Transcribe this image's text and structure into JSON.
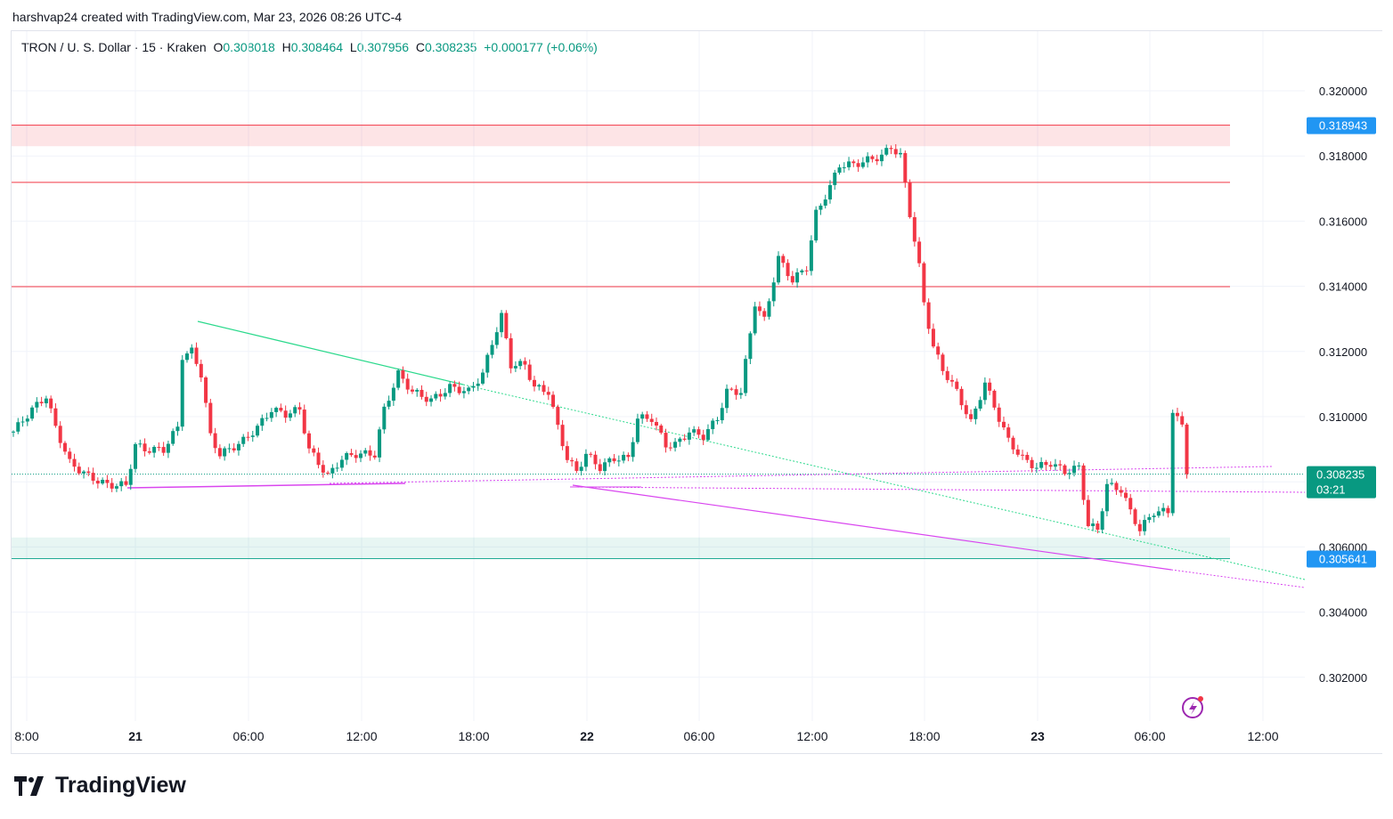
{
  "credit": "harshvap24 created with TradingView.com, Mar 23, 2026 08:26 UTC-4",
  "legend": {
    "symbol": "TRON / U. S. Dollar · 15 · Kraken",
    "o_label": "O",
    "o": "0.308018",
    "h_label": "H",
    "h": "0.308464",
    "l_label": "L",
    "l": "0.307956",
    "c_label": "C",
    "c": "0.308235",
    "change": "+0.000177 (+0.06%)"
  },
  "logo": "TradingView",
  "colors": {
    "up": "#089981",
    "down": "#f23645",
    "resistance": "#f23645",
    "support": "#22ab94",
    "trend_green": "#2bd98c",
    "trend_magenta": "#d946ef",
    "label_blue": "#2196f3"
  },
  "chart_data": {
    "type": "candlestick",
    "interval": "15",
    "ylim": [
      0.3005,
      0.3215
    ],
    "y_ticks": [
      "0.320000",
      "0.318000",
      "0.316000",
      "0.314000",
      "0.312000",
      "0.310000",
      "0.306000",
      "0.304000",
      "0.302000"
    ],
    "x_ticks": [
      "8:00",
      "21",
      "06:00",
      "12:00",
      "18:00",
      "22",
      "06:00",
      "12:00",
      "18:00",
      "23",
      "06:00",
      "12:00"
    ],
    "bar_count": 251,
    "price_path": [
      [
        0,
        0.30954
      ],
      [
        4,
        0.31022
      ],
      [
        7,
        0.31063
      ],
      [
        9,
        0.30967
      ],
      [
        12,
        0.30858
      ],
      [
        16,
        0.30817
      ],
      [
        20,
        0.3079
      ],
      [
        24,
        0.3079
      ],
      [
        26,
        0.30913
      ],
      [
        28,
        0.30899
      ],
      [
        32,
        0.30899
      ],
      [
        35,
        0.30967
      ],
      [
        36,
        0.31186
      ],
      [
        38,
        0.312
      ],
      [
        40,
        0.31131
      ],
      [
        42,
        0.3094
      ],
      [
        44,
        0.30885
      ],
      [
        46,
        0.30899
      ],
      [
        49,
        0.30926
      ],
      [
        52,
        0.30967
      ],
      [
        55,
        0.31022
      ],
      [
        58,
        0.31008
      ],
      [
        61,
        0.31022
      ],
      [
        63,
        0.30899
      ],
      [
        65,
        0.30858
      ],
      [
        67,
        0.30817
      ],
      [
        70,
        0.30872
      ],
      [
        73,
        0.30885
      ],
      [
        77,
        0.30885
      ],
      [
        79,
        0.31022
      ],
      [
        82,
        0.31131
      ],
      [
        85,
        0.31077
      ],
      [
        89,
        0.3105
      ],
      [
        93,
        0.3109
      ],
      [
        97,
        0.31077
      ],
      [
        100,
        0.31131
      ],
      [
        102,
        0.31227
      ],
      [
        104,
        0.31309
      ],
      [
        106,
        0.31159
      ],
      [
        109,
        0.31159
      ],
      [
        111,
        0.3109
      ],
      [
        114,
        0.31077
      ],
      [
        116,
        0.30967
      ],
      [
        118,
        0.30872
      ],
      [
        120,
        0.30831
      ],
      [
        122,
        0.30885
      ],
      [
        125,
        0.30844
      ],
      [
        128,
        0.30872
      ],
      [
        131,
        0.30872
      ],
      [
        133,
        0.30995
      ],
      [
        136,
        0.30995
      ],
      [
        139,
        0.30913
      ],
      [
        141,
        0.30913
      ],
      [
        144,
        0.30954
      ],
      [
        147,
        0.3094
      ],
      [
        150,
        0.30995
      ],
      [
        152,
        0.31077
      ],
      [
        155,
        0.31077
      ],
      [
        157,
        0.31254
      ],
      [
        158,
        0.3135
      ],
      [
        160,
        0.31295
      ],
      [
        163,
        0.31486
      ],
      [
        166,
        0.31418
      ],
      [
        169,
        0.31459
      ],
      [
        171,
        0.31623
      ],
      [
        174,
        0.31705
      ],
      [
        176,
        0.31773
      ],
      [
        179,
        0.31773
      ],
      [
        182,
        0.31787
      ],
      [
        185,
        0.318
      ],
      [
        187,
        0.31828
      ],
      [
        189,
        0.318
      ],
      [
        191,
        0.31623
      ],
      [
        193,
        0.31459
      ],
      [
        194,
        0.3135
      ],
      [
        196,
        0.31213
      ],
      [
        198,
        0.31145
      ],
      [
        201,
        0.31077
      ],
      [
        204,
        0.30981
      ],
      [
        207,
        0.31104
      ],
      [
        210,
        0.30995
      ],
      [
        212,
        0.30926
      ],
      [
        215,
        0.30872
      ],
      [
        218,
        0.30844
      ],
      [
        221,
        0.30858
      ],
      [
        224,
        0.30831
      ],
      [
        227,
        0.30844
      ],
      [
        229,
        0.30667
      ],
      [
        231,
        0.30653
      ],
      [
        233,
        0.3079
      ],
      [
        236,
        0.30776
      ],
      [
        238,
        0.30708
      ],
      [
        240,
        0.30653
      ],
      [
        243,
        0.30708
      ],
      [
        246,
        0.30708
      ],
      [
        247,
        0.31022
      ],
      [
        249,
        0.30967
      ],
      [
        250,
        0.308235
      ]
    ],
    "horizontal_levels": [
      {
        "price": 0.318943,
        "label": "0.318943",
        "kind": "resistance"
      },
      {
        "price": 0.31719,
        "kind": "resistance"
      },
      {
        "price": 0.31399,
        "kind": "resistance"
      },
      {
        "price": 0.305641,
        "label": "0.305641",
        "kind": "support"
      }
    ],
    "zones": [
      {
        "from": 0.3183,
        "to": 0.318943,
        "kind": "resistance"
      },
      {
        "from": 0.305641,
        "to": 0.30629,
        "kind": "support"
      }
    ],
    "last_price": {
      "label": "0.308235",
      "countdown": "03:21"
    }
  }
}
